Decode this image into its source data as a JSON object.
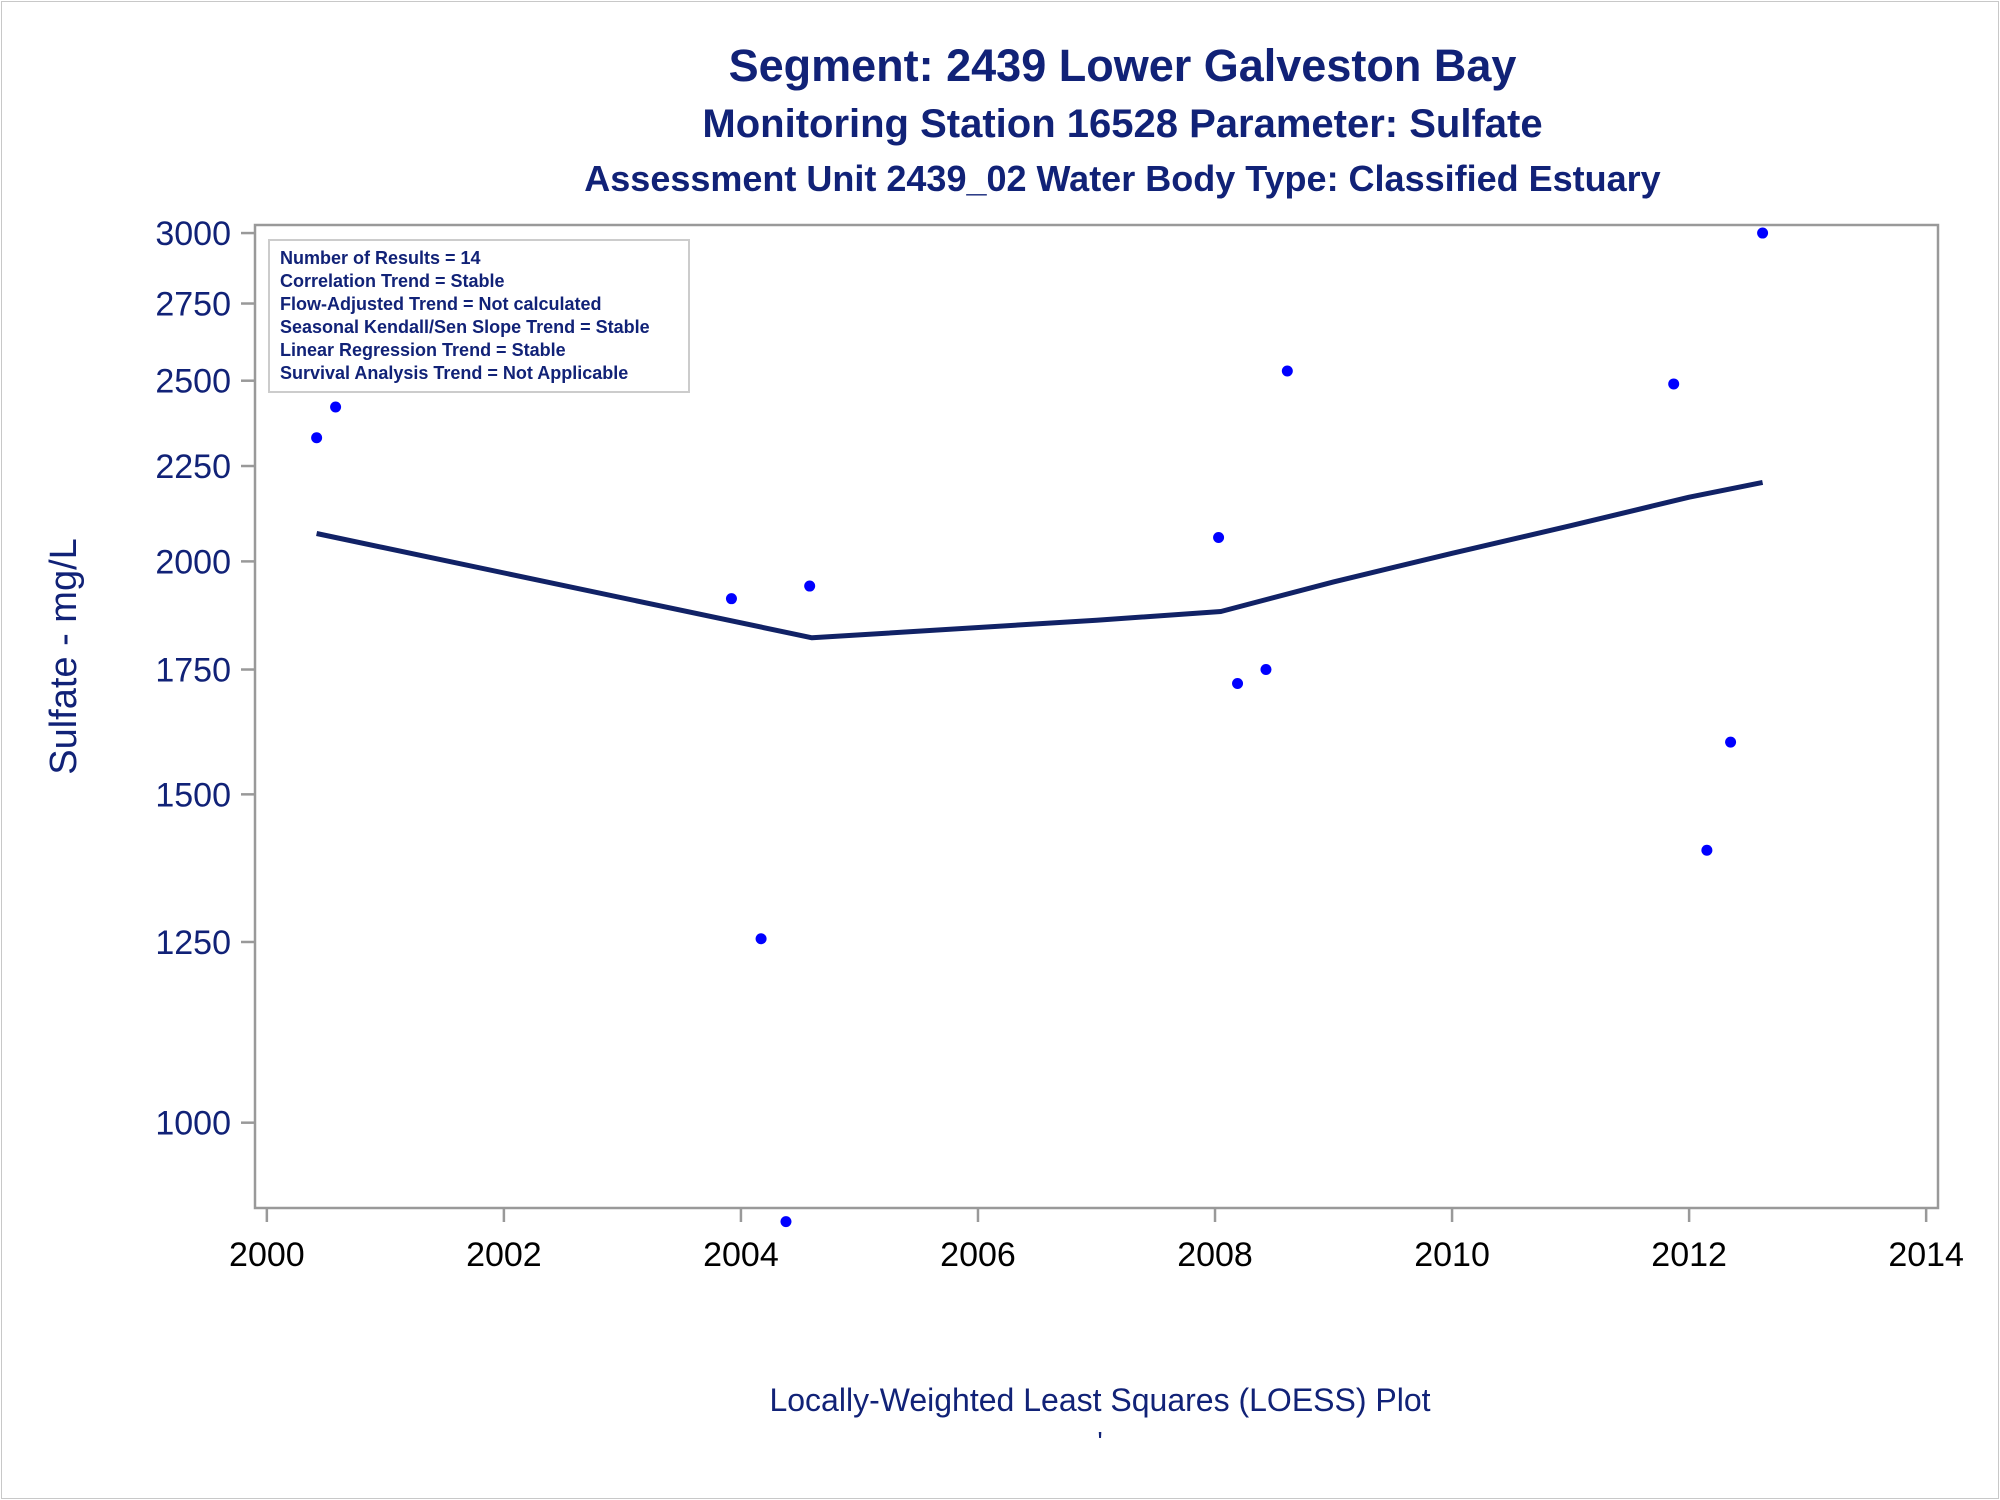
{
  "titles": {
    "line1": "Segment: 2439  Lower Galveston Bay",
    "line2": "Monitoring Station 16528 Parameter: Sulfate",
    "line3": "Assessment Unit 2439_02   Water Body Type: Classified Estuary"
  },
  "footnote": {
    "line1": "Locally-Weighted Least Squares (LOESS) Plot",
    "line2": "'"
  },
  "colors": {
    "text": "#112277",
    "points": "#0000ff",
    "loess": "#112266",
    "axis": "#999999"
  },
  "chart_data": {
    "type": "scatter",
    "ylabel": "Sulfate - mg/L",
    "xlabel": "",
    "xlim": [
      1999.9,
      2014.1
    ],
    "ylim": [
      900,
      3030
    ],
    "y_scale": "log",
    "grid": false,
    "xticks": [
      2000,
      2002,
      2004,
      2006,
      2008,
      2010,
      2012,
      2014
    ],
    "yticks": [
      1000,
      1250,
      1500,
      1750,
      2000,
      2250,
      2500,
      2750,
      3000
    ],
    "points": {
      "x": [
        2000.42,
        2000.58,
        2003.92,
        2004.17,
        2004.38,
        2004.58,
        2008.03,
        2008.19,
        2008.43,
        2008.61,
        2011.87,
        2012.15,
        2012.35,
        2012.62
      ],
      "y": [
        2330,
        2420,
        1910,
        1255,
        885,
        1940,
        2060,
        1720,
        1750,
        2530,
        2490,
        1400,
        1600,
        3000
      ]
    },
    "loess_line": {
      "x": [
        2000.42,
        2004.6,
        2007.0,
        2008.05,
        2009.0,
        2010.0,
        2011.0,
        2012.0,
        2012.62
      ],
      "y": [
        2070,
        1820,
        1860,
        1880,
        1950,
        2020,
        2090,
        2165,
        2205
      ]
    },
    "legend_box": {
      "position": "top-left",
      "lines": [
        "Number of Results = 14",
        "Correlation Trend = Stable",
        "Flow-Adjusted Trend = Not calculated",
        "Seasonal Kendall/Sen Slope Trend = Stable",
        "Linear Regression Trend = Stable",
        "Survival Analysis Trend = Not Applicable"
      ]
    }
  }
}
